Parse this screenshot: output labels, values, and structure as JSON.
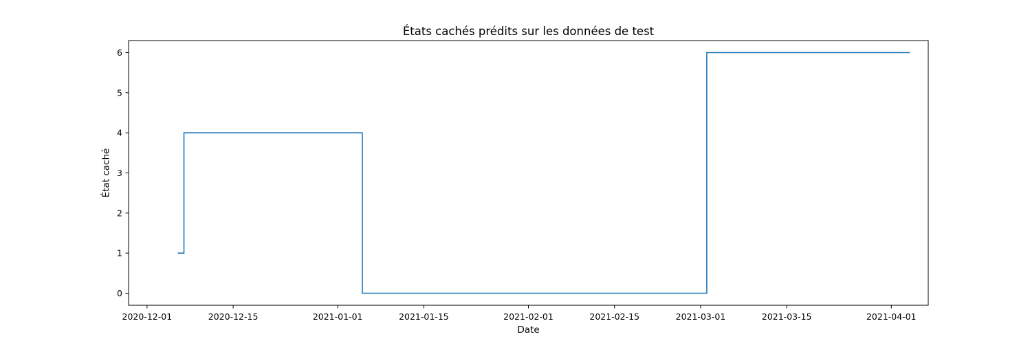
{
  "chart_data": {
    "type": "line",
    "drawstyle": "steps-post",
    "title": "États cachés prédits sur les données de test",
    "xlabel": "Date",
    "ylabel": "État caché",
    "xlim": [
      "2020-11-28",
      "2021-04-07"
    ],
    "ylim": [
      -0.3,
      6.3
    ],
    "x_ticks": [
      "2020-12-01",
      "2020-12-15",
      "2021-01-01",
      "2021-01-15",
      "2021-02-01",
      "2021-02-15",
      "2021-03-01",
      "2021-03-15",
      "2021-04-01"
    ],
    "y_ticks": [
      0,
      1,
      2,
      3,
      4,
      5,
      6
    ],
    "grid": false,
    "legend": "none",
    "line_color": "#1f77b4",
    "series": [
      {
        "x": [
          "2020-12-06",
          "2020-12-07",
          "2021-01-05",
          "2021-03-02",
          "2021-04-04"
        ],
        "y": [
          1,
          4,
          0,
          6,
          6
        ]
      }
    ]
  }
}
